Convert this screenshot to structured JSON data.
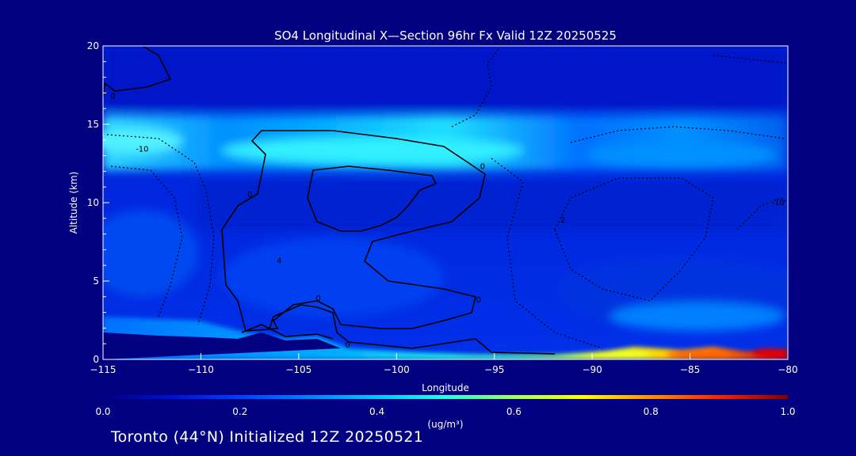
{
  "chart_data": {
    "type": "heatmap",
    "title": "SO4 Longitudinal X—Section 96hr  Fx Valid 12Z 20250525",
    "xlabel": "Longitude",
    "ylabel": "Altitude (km)",
    "xlim": [
      -115,
      -80
    ],
    "ylim": [
      0,
      20
    ],
    "x_ticks": [
      -115,
      -110,
      -105,
      -100,
      -95,
      -90,
      -85,
      -80
    ],
    "y_ticks": [
      0,
      5,
      10,
      15,
      20
    ],
    "colorbar": {
      "min": 0.0,
      "max": 1.0,
      "ticks": [
        "0.0",
        "0.2",
        "0.4",
        "0.6",
        "0.8",
        "1.0"
      ],
      "unit_label": "(ug/m³)",
      "colormap": [
        "#000080",
        "#0010d0",
        "#0040ff",
        "#00a0ff",
        "#00e0ff",
        "#40ffc0",
        "#c0ff40",
        "#ffff00",
        "#ff8000",
        "#ff0000",
        "#800000"
      ]
    },
    "contour_labels": [
      {
        "text": "0",
        "lon": -114.5,
        "alt": 16.8
      },
      {
        "text": "-10",
        "lon": -113,
        "alt": 13.4
      },
      {
        "text": "0",
        "lon": -107.5,
        "alt": 10.5
      },
      {
        "text": "4",
        "lon": -106,
        "alt": 6.3
      },
      {
        "text": "0",
        "lon": -104,
        "alt": 3.9
      },
      {
        "text": "0",
        "lon": -95.6,
        "alt": 12.3
      },
      {
        "text": "0",
        "lon": -95.8,
        "alt": 3.8
      },
      {
        "text": "2",
        "lon": -91.5,
        "alt": 8.9
      },
      {
        "text": "-10",
        "lon": -80.5,
        "alt": 10.0
      },
      {
        "text": "0",
        "lon": -102.5,
        "alt": 0.9
      }
    ]
  },
  "footer": {
    "text": "Toronto (44°N) Initialized 12Z 20250521"
  },
  "colors": {
    "background": "#000080",
    "text": "#ffffff",
    "contour": "#000000"
  }
}
